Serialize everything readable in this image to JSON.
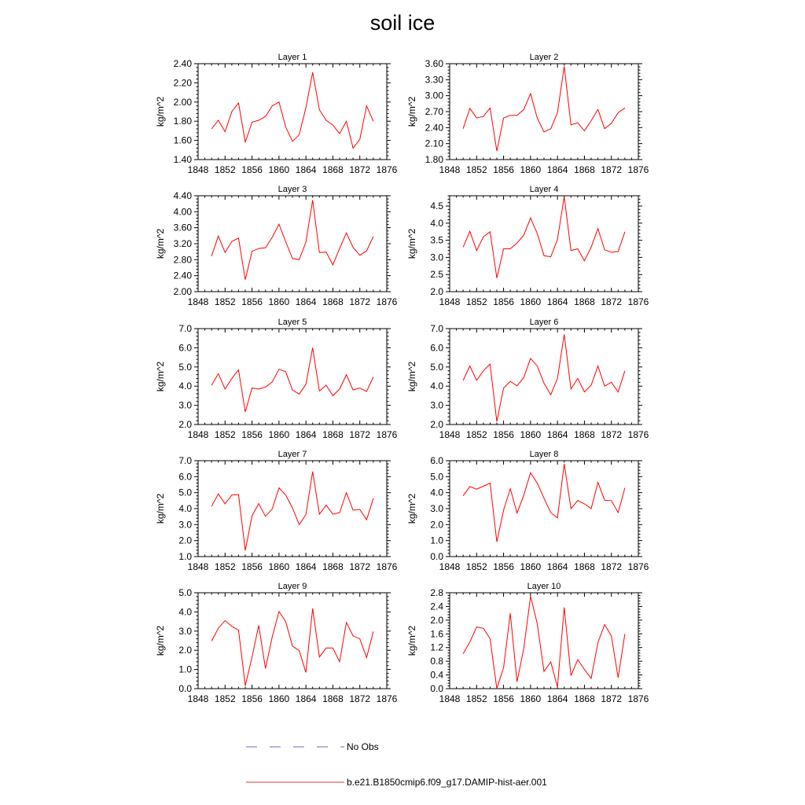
{
  "title": "soil ice",
  "legend": [
    {
      "label": "No Obs",
      "style": "dashed",
      "color": "#6a6ab4"
    },
    {
      "label": "b.e21.B1850cmip6.f09_g17.DAMIP-hist-aer.001",
      "style": "solid",
      "color": "#e8333a"
    }
  ],
  "chart_data": [
    {
      "type": "line",
      "title": "Layer 1",
      "ylabel": "kg/m^2",
      "xlim": [
        1848,
        1876
      ],
      "xticks": [
        "1848",
        "1852",
        "1856",
        "1860",
        "1864",
        "1868",
        "1872",
        "1876"
      ],
      "ylim": [
        1.4,
        2.4
      ],
      "yticks": [
        "1.40",
        "1.60",
        "1.80",
        "2.00",
        "2.20",
        "2.40"
      ],
      "series": [
        {
          "color": "#ff0000",
          "x": [
            1850,
            1851,
            1852,
            1853,
            1854,
            1855,
            1856,
            1857,
            1858,
            1859,
            1860,
            1861,
            1862,
            1863,
            1864,
            1865,
            1866,
            1867,
            1868,
            1869,
            1870,
            1871,
            1872,
            1873,
            1874
          ],
          "y": [
            1.72,
            1.81,
            1.69,
            1.9,
            1.99,
            1.58,
            1.79,
            1.81,
            1.85,
            1.96,
            2.0,
            1.74,
            1.59,
            1.66,
            1.94,
            2.31,
            1.92,
            1.81,
            1.76,
            1.67,
            1.8,
            1.52,
            1.61,
            1.96,
            1.8
          ]
        }
      ]
    },
    {
      "type": "line",
      "title": "Layer 2",
      "ylabel": "kg/m^2",
      "xlim": [
        1848,
        1876
      ],
      "xticks": [
        "1848",
        "1852",
        "1856",
        "1860",
        "1864",
        "1868",
        "1872",
        "1876"
      ],
      "ylim": [
        1.8,
        3.6
      ],
      "yticks": [
        "1.80",
        "2.10",
        "2.40",
        "2.70",
        "3.00",
        "3.30",
        "3.60"
      ],
      "series": [
        {
          "color": "#ff0000",
          "x": [
            1850,
            1851,
            1852,
            1853,
            1854,
            1855,
            1856,
            1857,
            1858,
            1859,
            1860,
            1861,
            1862,
            1863,
            1864,
            1865,
            1866,
            1867,
            1868,
            1869,
            1870,
            1871,
            1872,
            1873,
            1874
          ],
          "y": [
            2.38,
            2.76,
            2.58,
            2.61,
            2.77,
            1.96,
            2.58,
            2.63,
            2.63,
            2.74,
            3.04,
            2.58,
            2.32,
            2.38,
            2.68,
            3.55,
            2.45,
            2.49,
            2.34,
            2.53,
            2.74,
            2.38,
            2.48,
            2.68,
            2.77
          ]
        }
      ]
    },
    {
      "type": "line",
      "title": "Layer 3",
      "ylabel": "kg/m^2",
      "xlim": [
        1848,
        1876
      ],
      "xticks": [
        "1848",
        "1852",
        "1856",
        "1860",
        "1864",
        "1868",
        "1872",
        "1876"
      ],
      "ylim": [
        2.0,
        4.4
      ],
      "yticks": [
        "2.00",
        "2.40",
        "2.80",
        "3.20",
        "3.60",
        "4.00",
        "4.40"
      ],
      "series": [
        {
          "color": "#ff0000",
          "x": [
            1850,
            1851,
            1852,
            1853,
            1854,
            1855,
            1856,
            1857,
            1858,
            1859,
            1860,
            1861,
            1862,
            1863,
            1864,
            1865,
            1866,
            1867,
            1868,
            1869,
            1870,
            1871,
            1872,
            1873,
            1874
          ],
          "y": [
            2.89,
            3.39,
            2.98,
            3.26,
            3.34,
            2.3,
            3.01,
            3.08,
            3.1,
            3.36,
            3.69,
            3.25,
            2.83,
            2.8,
            3.24,
            4.29,
            2.98,
            2.99,
            2.67,
            3.08,
            3.47,
            3.11,
            2.91,
            3.02,
            3.38
          ]
        }
      ]
    },
    {
      "type": "line",
      "title": "Layer 4",
      "ylabel": "kg/m^2",
      "xlim": [
        1848,
        1876
      ],
      "xticks": [
        "1848",
        "1852",
        "1856",
        "1860",
        "1864",
        "1868",
        "1872",
        "1876"
      ],
      "ylim": [
        2.0,
        4.8
      ],
      "yticks": [
        "2.0",
        "2.5",
        "3.0",
        "3.5",
        "4.0",
        "4.5"
      ],
      "series": [
        {
          "color": "#ff0000",
          "x": [
            1850,
            1851,
            1852,
            1853,
            1854,
            1855,
            1856,
            1857,
            1858,
            1859,
            1860,
            1861,
            1862,
            1863,
            1864,
            1865,
            1866,
            1867,
            1868,
            1869,
            1870,
            1871,
            1872,
            1873,
            1874
          ],
          "y": [
            3.3,
            3.76,
            3.2,
            3.6,
            3.75,
            2.4,
            3.25,
            3.25,
            3.42,
            3.65,
            4.15,
            3.7,
            3.05,
            3.02,
            3.52,
            4.78,
            3.2,
            3.25,
            2.9,
            3.3,
            3.84,
            3.22,
            3.15,
            3.17,
            3.75
          ]
        }
      ]
    },
    {
      "type": "line",
      "title": "Layer 5",
      "ylabel": "kg/m^2",
      "xlim": [
        1848,
        1876
      ],
      "xticks": [
        "1848",
        "1852",
        "1856",
        "1860",
        "1864",
        "1868",
        "1872",
        "1876"
      ],
      "ylim": [
        2.0,
        7.0
      ],
      "yticks": [
        "2.0",
        "3.0",
        "4.0",
        "5.0",
        "6.0",
        "7.0"
      ],
      "series": [
        {
          "color": "#ff0000",
          "x": [
            1850,
            1851,
            1852,
            1853,
            1854,
            1855,
            1856,
            1857,
            1858,
            1859,
            1860,
            1861,
            1862,
            1863,
            1864,
            1865,
            1866,
            1867,
            1868,
            1869,
            1870,
            1871,
            1872,
            1873,
            1874
          ],
          "y": [
            4.05,
            4.65,
            3.85,
            4.4,
            4.85,
            2.65,
            3.9,
            3.85,
            3.95,
            4.22,
            4.88,
            4.75,
            3.8,
            3.58,
            4.1,
            6.0,
            3.75,
            4.05,
            3.5,
            3.85,
            4.6,
            3.8,
            3.9,
            3.72,
            4.48
          ]
        }
      ]
    },
    {
      "type": "line",
      "title": "Layer 6",
      "ylabel": "kg/m^2",
      "xlim": [
        1848,
        1876
      ],
      "xticks": [
        "1848",
        "1852",
        "1856",
        "1860",
        "1864",
        "1868",
        "1872",
        "1876"
      ],
      "ylim": [
        2.0,
        7.0
      ],
      "yticks": [
        "2.0",
        "3.0",
        "4.0",
        "5.0",
        "6.0",
        "7.0"
      ],
      "series": [
        {
          "color": "#ff0000",
          "x": [
            1850,
            1851,
            1852,
            1853,
            1854,
            1855,
            1856,
            1857,
            1858,
            1859,
            1860,
            1861,
            1862,
            1863,
            1864,
            1865,
            1866,
            1867,
            1868,
            1869,
            1870,
            1871,
            1872,
            1873,
            1874
          ],
          "y": [
            4.3,
            5.05,
            4.3,
            4.8,
            5.15,
            2.15,
            3.9,
            4.25,
            4.02,
            4.45,
            5.45,
            5.05,
            4.15,
            3.55,
            4.4,
            6.7,
            3.85,
            4.4,
            3.7,
            4.05,
            5.05,
            4.0,
            4.2,
            3.7,
            4.8
          ]
        }
      ]
    },
    {
      "type": "line",
      "title": "Layer 7",
      "ylabel": "kg/m^2",
      "xlim": [
        1848,
        1876
      ],
      "xticks": [
        "1848",
        "1852",
        "1856",
        "1860",
        "1864",
        "1868",
        "1872",
        "1876"
      ],
      "ylim": [
        1.0,
        7.0
      ],
      "yticks": [
        "1.0",
        "2.0",
        "3.0",
        "4.0",
        "5.0",
        "6.0",
        "7.0"
      ],
      "series": [
        {
          "color": "#ff0000",
          "x": [
            1850,
            1851,
            1852,
            1853,
            1854,
            1855,
            1856,
            1857,
            1858,
            1859,
            1860,
            1861,
            1862,
            1863,
            1864,
            1865,
            1866,
            1867,
            1868,
            1869,
            1870,
            1871,
            1872,
            1873,
            1874
          ],
          "y": [
            4.15,
            4.92,
            4.3,
            4.85,
            4.88,
            1.38,
            3.55,
            4.32,
            3.52,
            3.98,
            5.3,
            4.85,
            4.05,
            3.0,
            3.62,
            6.32,
            3.65,
            4.22,
            3.65,
            3.75,
            5.0,
            3.9,
            3.95,
            3.3,
            4.65
          ]
        }
      ]
    },
    {
      "type": "line",
      "title": "Layer 8",
      "ylabel": "kg/m^2",
      "xlim": [
        1848,
        1876
      ],
      "xticks": [
        "1848",
        "1852",
        "1856",
        "1860",
        "1864",
        "1868",
        "1872",
        "1876"
      ],
      "ylim": [
        0.0,
        6.0
      ],
      "yticks": [
        "0.0",
        "1.0",
        "2.0",
        "3.0",
        "4.0",
        "5.0",
        "6.0"
      ],
      "series": [
        {
          "color": "#ff0000",
          "x": [
            1850,
            1851,
            1852,
            1853,
            1854,
            1855,
            1856,
            1857,
            1858,
            1859,
            1860,
            1861,
            1862,
            1863,
            1864,
            1865,
            1866,
            1867,
            1868,
            1869,
            1870,
            1871,
            1872,
            1873,
            1874
          ],
          "y": [
            3.8,
            4.38,
            4.22,
            4.4,
            4.6,
            0.92,
            2.9,
            4.25,
            2.72,
            3.85,
            5.25,
            4.6,
            3.65,
            2.75,
            2.42,
            5.8,
            3.0,
            3.5,
            3.3,
            3.0,
            4.65,
            3.52,
            3.5,
            2.75,
            4.3
          ]
        }
      ]
    },
    {
      "type": "line",
      "title": "Layer 9",
      "ylabel": "kg/m^2",
      "xlim": [
        1848,
        1876
      ],
      "xticks": [
        "1848",
        "1852",
        "1856",
        "1860",
        "1864",
        "1868",
        "1872",
        "1876"
      ],
      "ylim": [
        0.0,
        5.0
      ],
      "yticks": [
        "0.0",
        "1.0",
        "2.0",
        "3.0",
        "4.0",
        "5.0"
      ],
      "series": [
        {
          "color": "#ff0000",
          "x": [
            1850,
            1851,
            1852,
            1853,
            1854,
            1855,
            1856,
            1857,
            1858,
            1859,
            1860,
            1861,
            1862,
            1863,
            1864,
            1865,
            1866,
            1867,
            1868,
            1869,
            1870,
            1871,
            1872,
            1873,
            1874
          ],
          "y": [
            2.48,
            3.15,
            3.55,
            3.25,
            3.05,
            0.15,
            1.65,
            3.3,
            1.05,
            2.7,
            4.02,
            3.5,
            2.22,
            1.98,
            0.85,
            4.18,
            1.65,
            2.12,
            2.12,
            1.4,
            3.45,
            2.75,
            2.6,
            1.62,
            2.98
          ]
        }
      ]
    },
    {
      "type": "line",
      "title": "Layer 10",
      "ylabel": "kg/m^2",
      "xlim": [
        1848,
        1876
      ],
      "xticks": [
        "1848",
        "1852",
        "1856",
        "1860",
        "1864",
        "1868",
        "1872",
        "1876"
      ],
      "ylim": [
        0.0,
        2.8
      ],
      "yticks": [
        "0.0",
        "0.4",
        "0.8",
        "1.2",
        "1.6",
        "2.0",
        "2.4",
        "2.8"
      ],
      "series": [
        {
          "color": "#ff0000",
          "x": [
            1850,
            1851,
            1852,
            1853,
            1854,
            1855,
            1856,
            1857,
            1858,
            1859,
            1860,
            1861,
            1862,
            1863,
            1864,
            1865,
            1866,
            1867,
            1868,
            1869,
            1870,
            1871,
            1872,
            1873,
            1874
          ],
          "y": [
            1.02,
            1.36,
            1.8,
            1.76,
            1.46,
            0.0,
            0.62,
            2.2,
            0.2,
            1.18,
            2.7,
            1.9,
            0.5,
            0.78,
            0.05,
            2.37,
            0.38,
            0.85,
            0.56,
            0.3,
            1.35,
            1.87,
            1.54,
            0.32,
            1.6
          ]
        }
      ]
    }
  ]
}
